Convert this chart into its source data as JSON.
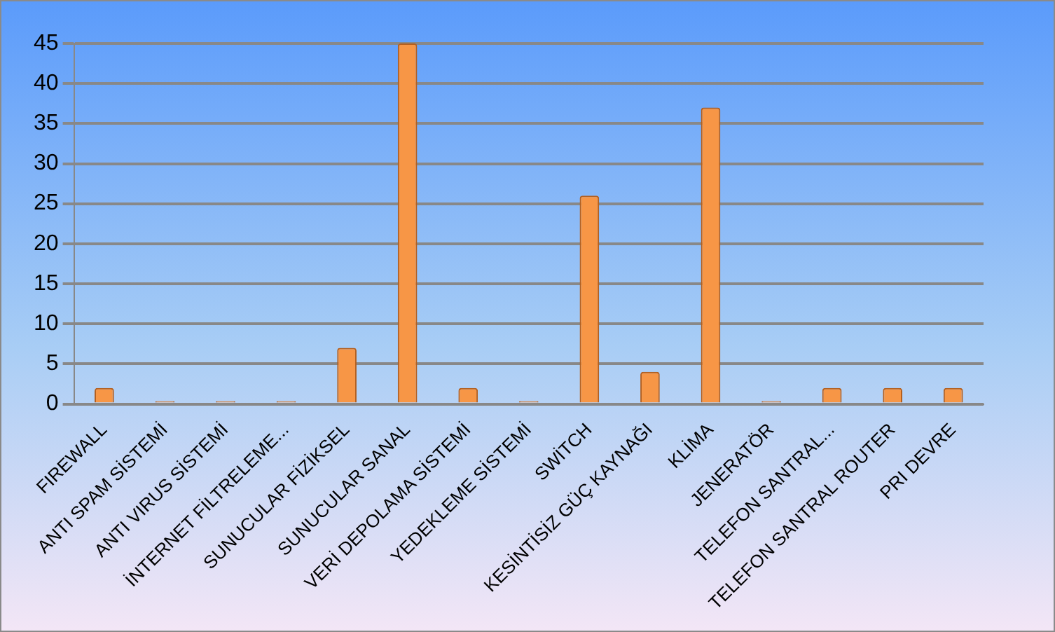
{
  "chart_data": {
    "type": "bar",
    "categories": [
      "FIREWALL",
      "ANTI SPAM SİSTEMİ",
      "ANTI VIRUS SİSTEMİ",
      "İNTERNET FİLTRELEME...",
      "SUNUCULAR FİZİKSEL",
      "SUNUCULAR SANAL",
      "VERİ DEPOLAMA SİSTEMİ",
      "YEDEKLEME SİSTEMİ",
      "SWİTCH",
      "KESİNTİSİZ GÜÇ KAYNAĞI",
      "KLİMA",
      "JENERATÖR",
      "TELEFON SANTRAL...",
      "TELEFON SANTRAL ROUTER",
      "PRI DEVRE"
    ],
    "values": [
      2,
      0,
      0,
      0,
      7,
      45,
      2,
      0,
      26,
      4,
      37,
      0,
      2,
      2,
      2
    ],
    "color": "#f79646",
    "ylim": [
      0,
      45
    ],
    "yticks": [
      0,
      5,
      10,
      15,
      20,
      25,
      30,
      35,
      40,
      45
    ],
    "grid": "y",
    "legend": false
  }
}
